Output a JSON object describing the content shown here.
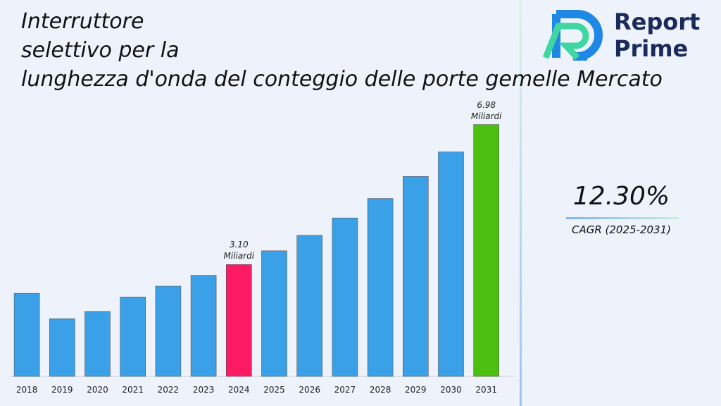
{
  "chart_data": {
    "type": "bar",
    "title": "Interruttore\nselettivo per la\nlunghezza d'onda del conteggio delle porte gemelle Mercato",
    "categories": [
      "2018",
      "2019",
      "2020",
      "2021",
      "2022",
      "2023",
      "2024",
      "2025",
      "2026",
      "2027",
      "2028",
      "2029",
      "2030",
      "2031"
    ],
    "values": [
      2.3,
      1.6,
      1.8,
      2.2,
      2.5,
      2.8,
      3.1,
      3.48,
      3.91,
      4.39,
      4.93,
      5.54,
      6.22,
      6.98
    ],
    "value_labels": [
      null,
      null,
      null,
      null,
      null,
      null,
      "3.10 Miliardi",
      null,
      null,
      null,
      null,
      null,
      null,
      "6.98 Miliardi"
    ],
    "colors": [
      "#3aa0e8",
      "#3aa0e8",
      "#3aa0e8",
      "#3aa0e8",
      "#3aa0e8",
      "#3aa0e8",
      "#fc1b62",
      "#3aa0e8",
      "#3aa0e8",
      "#3aa0e8",
      "#3aa0e8",
      "#3aa0e8",
      "#3aa0e8",
      "#4cbf10"
    ],
    "ylim": [
      0,
      7.5
    ],
    "cagr": "12.30%",
    "cagr_label": "CAGR (2025-2031)",
    "brand": [
      "Report",
      "Prime"
    ]
  }
}
